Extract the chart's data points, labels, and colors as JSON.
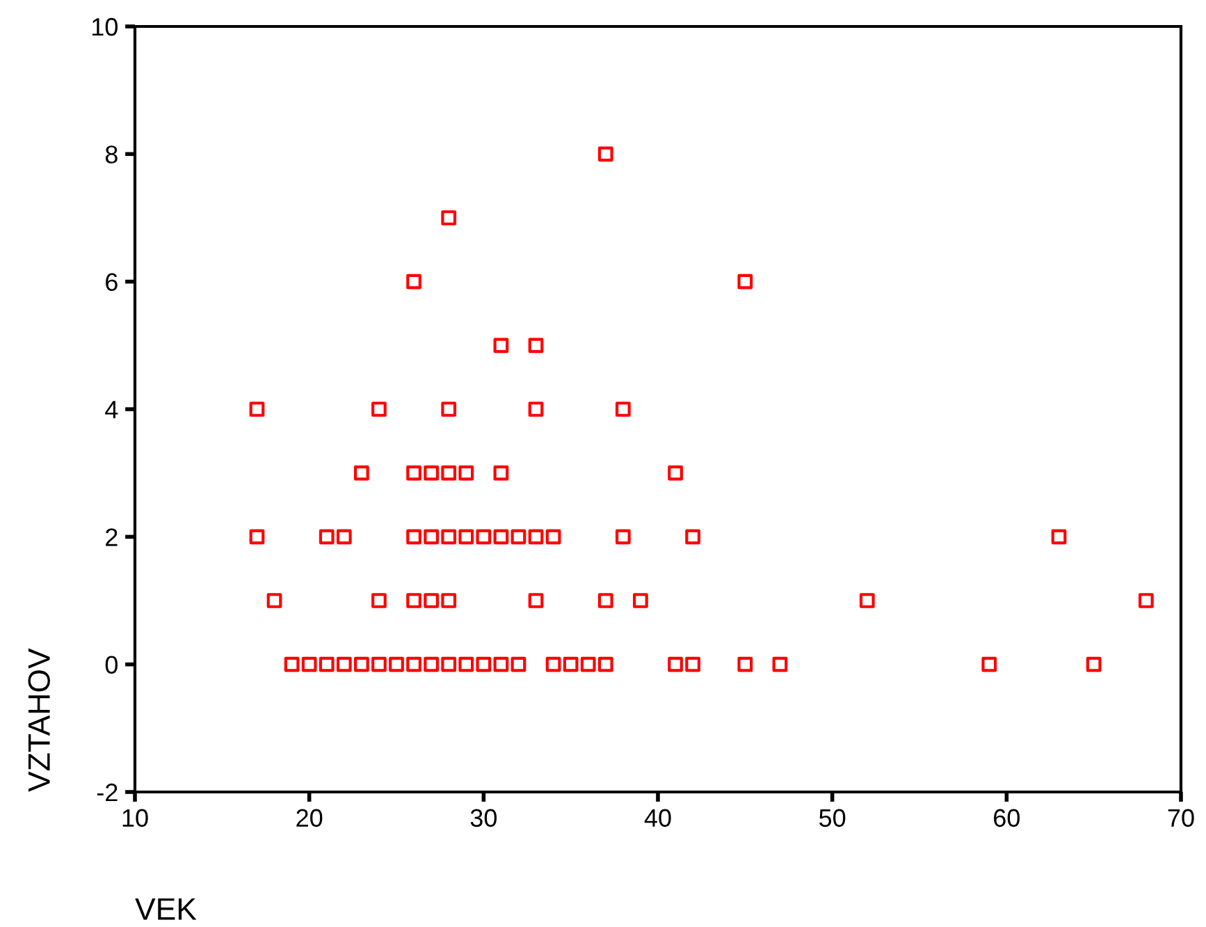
{
  "chart_data": {
    "type": "scatter",
    "xlabel": "VEK",
    "ylabel": "VZTAHOV",
    "marker": "square",
    "grid": false,
    "legend": false,
    "xlim": [
      10,
      70
    ],
    "ylim": [
      -2,
      10
    ],
    "xticks": [
      10,
      20,
      30,
      40,
      50,
      60,
      70
    ],
    "yticks": [
      -2,
      0,
      2,
      4,
      6,
      8,
      10
    ],
    "series": [
      {
        "color": "#ff0000",
        "x": [
          37,
          28,
          26,
          45,
          31,
          33,
          17,
          24,
          28,
          33,
          38,
          23,
          26,
          27,
          28,
          29,
          31,
          41,
          17,
          21,
          22,
          26,
          27,
          28,
          29,
          30,
          31,
          32,
          33,
          34,
          38,
          42,
          63,
          18,
          24,
          26,
          27,
          28,
          33,
          37,
          39,
          52,
          68,
          19,
          20,
          21,
          22,
          23,
          24,
          25,
          26,
          27,
          28,
          29,
          30,
          31,
          32,
          34,
          35,
          36,
          37,
          41,
          42,
          45,
          47,
          59,
          65
        ],
        "values": [
          8,
          7,
          6,
          6,
          5,
          5,
          4,
          4,
          4,
          4,
          4,
          3,
          3,
          3,
          3,
          3,
          3,
          3,
          2,
          2,
          2,
          2,
          2,
          2,
          2,
          2,
          2,
          2,
          2,
          2,
          2,
          2,
          2,
          1,
          1,
          1,
          1,
          1,
          1,
          1,
          1,
          1,
          1,
          0,
          0,
          0,
          0,
          0,
          0,
          0,
          0,
          0,
          0,
          0,
          0,
          0,
          0,
          0,
          0,
          0,
          0,
          0,
          0,
          0,
          0,
          0,
          0
        ]
      }
    ]
  }
}
